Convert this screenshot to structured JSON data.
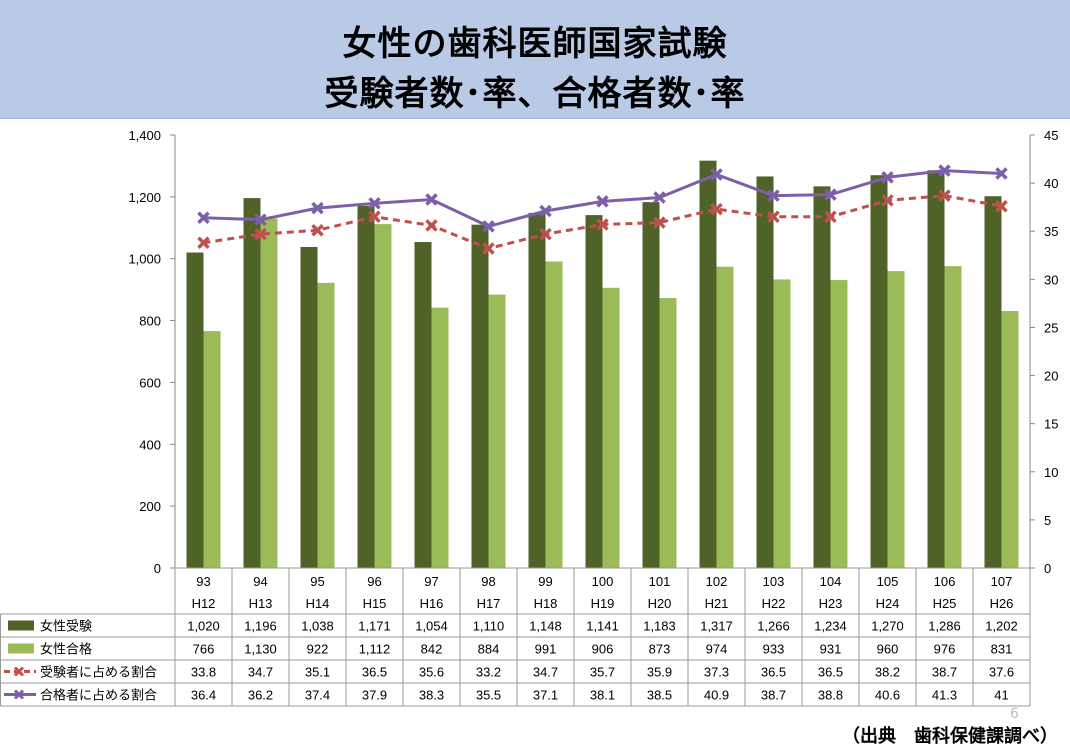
{
  "title": {
    "line1": "女性の歯科医師国家試験",
    "line2": "受験者数･率、合格者数･率"
  },
  "page_number": "6",
  "source": "（出典　歯科保健課調べ）",
  "chart_data": {
    "type": "bar",
    "title": "女性の歯科医師国家試験 受験者数･率、合格者数･率",
    "categories": [
      "93",
      "94",
      "95",
      "96",
      "97",
      "98",
      "99",
      "100",
      "101",
      "102",
      "103",
      "104",
      "105",
      "106",
      "107"
    ],
    "sub_categories": [
      "H12",
      "H13",
      "H14",
      "H15",
      "H16",
      "H17",
      "H18",
      "H19",
      "H20",
      "H21",
      "H22",
      "H23",
      "H24",
      "H25",
      "H26"
    ],
    "series": [
      {
        "name": "女性受験",
        "type": "bar",
        "axis": "left",
        "color": "#4f6228",
        "values": [
          1020,
          1196,
          1038,
          1171,
          1054,
          1110,
          1148,
          1141,
          1183,
          1317,
          1266,
          1234,
          1270,
          1286,
          1202
        ],
        "labels": [
          "1,020",
          "1,196",
          "1,038",
          "1,171",
          "1,054",
          "1,110",
          "1,148",
          "1,141",
          "1,183",
          "1,317",
          "1,266",
          "1,234",
          "1,270",
          "1,286",
          "1,202"
        ]
      },
      {
        "name": "女性合格",
        "type": "bar",
        "axis": "left",
        "color": "#9bbb59",
        "values": [
          766,
          1130,
          922,
          1112,
          842,
          884,
          991,
          906,
          873,
          974,
          933,
          931,
          960,
          976,
          831
        ],
        "labels": [
          "766",
          "1,130",
          "922",
          "1,112",
          "842",
          "884",
          "991",
          "906",
          "873",
          "974",
          "933",
          "931",
          "960",
          "976",
          "831"
        ]
      },
      {
        "name": "受験者に占める割合",
        "type": "line",
        "axis": "right",
        "color": "#c0504d",
        "dashed": true,
        "marker": "x",
        "values": [
          33.8,
          34.7,
          35.1,
          36.5,
          35.6,
          33.2,
          34.7,
          35.7,
          35.9,
          37.3,
          36.5,
          36.5,
          38.2,
          38.7,
          37.6
        ],
        "labels": [
          "33.8",
          "34.7",
          "35.1",
          "36.5",
          "35.6",
          "33.2",
          "34.7",
          "35.7",
          "35.9",
          "37.3",
          "36.5",
          "36.5",
          "38.2",
          "38.7",
          "37.6"
        ]
      },
      {
        "name": "合格者に占める割合",
        "type": "line",
        "axis": "right",
        "color": "#7d5fa8",
        "dashed": false,
        "marker": "x",
        "values": [
          36.4,
          36.2,
          37.4,
          37.9,
          38.3,
          35.5,
          37.1,
          38.1,
          38.5,
          40.9,
          38.7,
          38.8,
          40.6,
          41.3,
          41
        ],
        "labels": [
          "36.4",
          "36.2",
          "37.4",
          "37.9",
          "38.3",
          "35.5",
          "37.1",
          "38.1",
          "38.5",
          "40.9",
          "38.7",
          "38.8",
          "40.6",
          "41.3",
          "41"
        ]
      }
    ],
    "y_left": {
      "min": 0,
      "max": 1400,
      "ticks": [
        "0",
        "200",
        "400",
        "600",
        "800",
        "1,000",
        "1,200",
        "1,400"
      ]
    },
    "y_right": {
      "min": 0,
      "max": 45,
      "ticks": [
        "0",
        "5",
        "10",
        "15",
        "20",
        "25",
        "30",
        "35",
        "40",
        "45"
      ]
    },
    "grid": false,
    "legend": "data-table"
  }
}
